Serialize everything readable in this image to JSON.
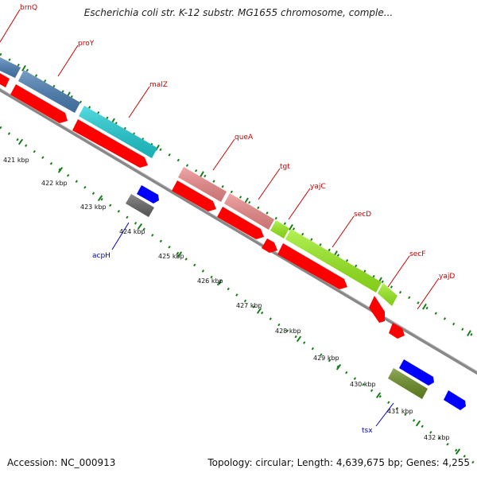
{
  "title": "Escherichia coli str. K-12 substr. MG1655 chromosome, comple...",
  "footer": {
    "accession": "Accession: NC_000913",
    "summary": "Topology: circular; Length: 4,639,675 bp; Genes: 4,255"
  },
  "colors": {
    "cds": "#ff0000",
    "plus_gene_blue": "#4a7fb5",
    "teal": "#1ecfd6",
    "pink": "#ef8a8a",
    "lime": "#9bf01e",
    "minus_blue": "#0000ff",
    "gray": "#666666",
    "olive": "#6b8e23",
    "tick_green": "#1a7f1a",
    "label_red": "#cc0000",
    "label_blue": "#0000cc",
    "backbone": "#888888"
  },
  "plus_genes": [
    {
      "name": "brnQ",
      "color": "plus_gene_blue"
    },
    {
      "name": "proY",
      "color": "plus_gene_blue"
    },
    {
      "name": "malZ",
      "color": "teal"
    },
    {
      "name": "queA",
      "color": "pink"
    },
    {
      "name": "tgt",
      "color": "pink"
    },
    {
      "name": "yajC",
      "color": "lime"
    },
    {
      "name": "secD",
      "color": "lime"
    },
    {
      "name": "secF",
      "color": "lime"
    },
    {
      "name": "yajD",
      "color": "cds"
    }
  ],
  "minus_genes": [
    {
      "name": "acpH",
      "color": "minus_blue"
    },
    {
      "name": "tsx",
      "color": "minus_blue"
    }
  ],
  "kbp_labels": [
    "421 kbp",
    "422 kbp",
    "423 kbp",
    "424 kbp",
    "425 kbp",
    "426 kbp",
    "427 kbp",
    "428 kbp",
    "429 kbp",
    "430 kbp",
    "431 kbp",
    "432 kbp"
  ]
}
